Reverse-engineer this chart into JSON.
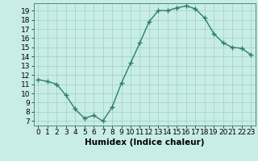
{
  "xlabel": "Humidex (Indice chaleur)",
  "x": [
    0,
    1,
    2,
    3,
    4,
    5,
    6,
    7,
    8,
    9,
    10,
    11,
    12,
    13,
    14,
    15,
    16,
    17,
    18,
    19,
    20,
    21,
    22,
    23
  ],
  "y": [
    11.5,
    11.3,
    11.0,
    9.8,
    8.3,
    7.3,
    7.6,
    7.0,
    8.5,
    11.1,
    13.3,
    15.5,
    17.8,
    19.0,
    19.0,
    19.3,
    19.5,
    19.2,
    18.2,
    16.5,
    15.5,
    15.0,
    14.9,
    14.2
  ],
  "line_color": "#2e7d6e",
  "marker": "+",
  "marker_size": 4,
  "marker_lw": 1.0,
  "line_width": 1.0,
  "bg_color": "#c8ede6",
  "grid_color": "#9ecfc7",
  "ylim": [
    6.5,
    19.8
  ],
  "xlim": [
    -0.5,
    23.5
  ],
  "yticks": [
    7,
    8,
    9,
    10,
    11,
    12,
    13,
    14,
    15,
    16,
    17,
    18,
    19
  ],
  "xticks": [
    0,
    1,
    2,
    3,
    4,
    5,
    6,
    7,
    8,
    9,
    10,
    11,
    12,
    13,
    14,
    15,
    16,
    17,
    18,
    19,
    20,
    21,
    22,
    23
  ],
  "xlabel_fontsize": 7.5,
  "tick_fontsize": 6.5
}
